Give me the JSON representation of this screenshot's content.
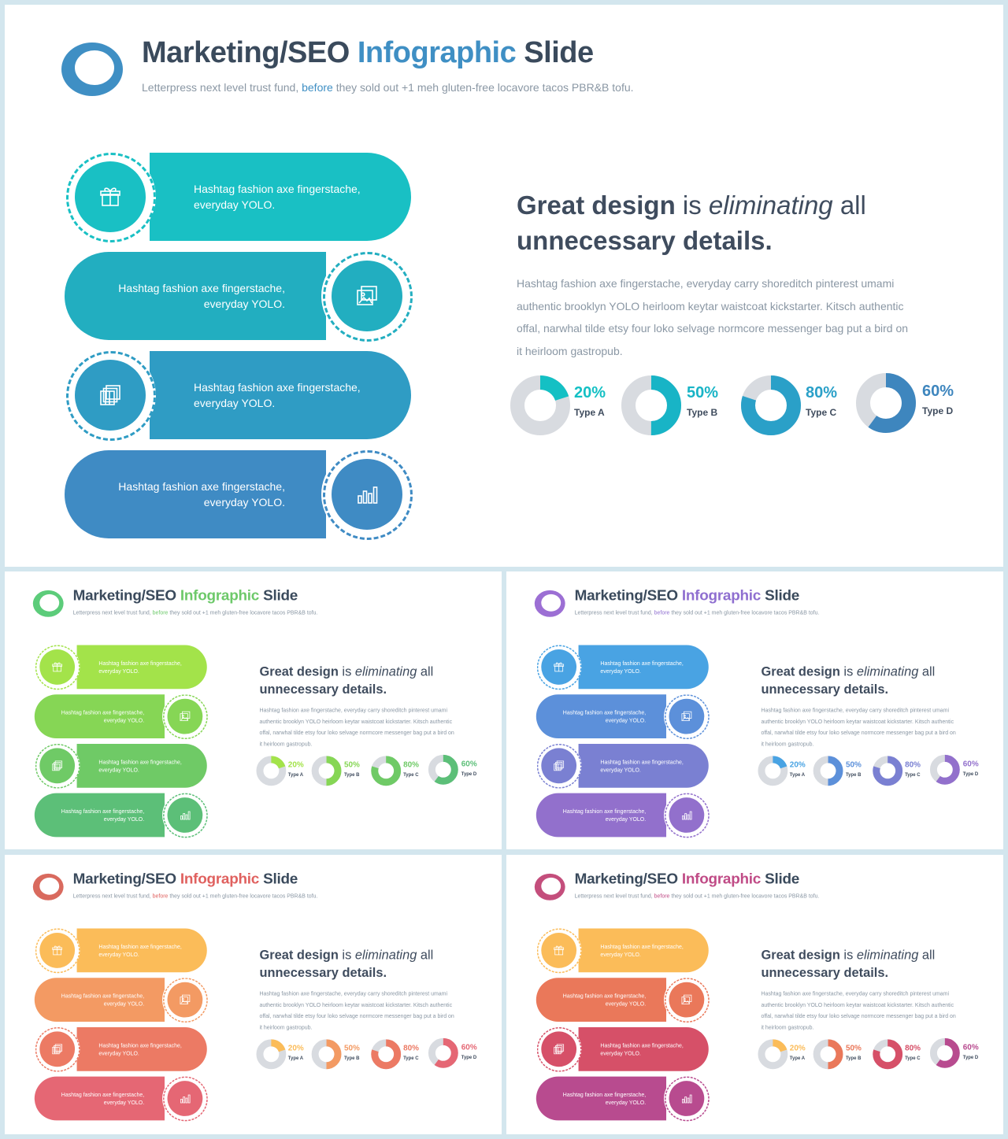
{
  "slide": {
    "title_part1": "Marketing/SEO ",
    "title_accent": "Infographic",
    "title_part2": " Slide",
    "subtitle_part1": "Letterpress next level trust fund, ",
    "subtitle_accent": "before",
    "subtitle_part2": " they sold out +1 meh gluten-free locavore tacos PBR&B tofu.",
    "heading_part1": "Great design",
    "heading_part2": " is ",
    "heading_italic": "eliminating",
    "heading_part3": " all",
    "heading_part4": "unnecessary details.",
    "body": "Hashtag fashion axe fingerstache, everyday carry shoreditch pinterest umami authentic brooklyn YOLO heirloom keytar waistcoat kickstarter. Kitsch authentic offal, narwhal tilde etsy four loko selvage normcore messenger bag put a bird on it heirloom gastropub.",
    "bands": [
      {
        "text": "Hashtag fashion axe fingerstache, everyday YOLO.",
        "icon": "gift-icon"
      },
      {
        "text": "Hashtag fashion axe fingerstache, everyday YOLO.",
        "icon": "image-icon"
      },
      {
        "text": "Hashtag fashion axe fingerstache, everyday YOLO.",
        "icon": "gallery-icon"
      },
      {
        "text": "Hashtag fashion axe fingerstache, everyday YOLO.",
        "icon": "bar-chart-icon"
      }
    ],
    "stats": [
      {
        "percent": 20,
        "label": "20%",
        "type": "Type A"
      },
      {
        "percent": 50,
        "label": "50%",
        "type": "Type B"
      },
      {
        "percent": 80,
        "label": "80%",
        "type": "Type C"
      },
      {
        "percent": 60,
        "label": "60%",
        "type": "Type D"
      }
    ]
  },
  "themes": [
    {
      "name": "teal-blue",
      "accent": "#3f8fc4",
      "logo": [
        "#3f8fc4",
        "#2f6fb0"
      ],
      "bands": [
        "#19c0c4",
        "#22aec0",
        "#2f9cc4",
        "#3f8bc4"
      ],
      "stats": [
        "#14c0c4",
        "#18b4c6",
        "#2aa0c8",
        "#3e86be"
      ]
    },
    {
      "name": "green",
      "accent": "#6dc96a",
      "logo": [
        "#5ccc7a",
        "#4ab86a"
      ],
      "bands": [
        "#a3e34a",
        "#86d655",
        "#6fca66",
        "#5cbf78"
      ],
      "stats": [
        "#a3e34a",
        "#86d655",
        "#6fca66",
        "#5cbf78"
      ]
    },
    {
      "name": "blue-purple",
      "accent": "#8f6fd0",
      "logo": [
        "#9c6fd4",
        "#7a5cc0"
      ],
      "bands": [
        "#49a3e3",
        "#5c90da",
        "#7a80d2",
        "#9270cc"
      ],
      "stats": [
        "#49a3e3",
        "#5c90da",
        "#7a80d2",
        "#9270cc"
      ]
    },
    {
      "name": "orange-red",
      "accent": "#e0615f",
      "logo": [
        "#d96a5e",
        "#b84d4f"
      ],
      "bands": [
        "#fbbc59",
        "#f39a63",
        "#ec7a64",
        "#e56774"
      ],
      "stats": [
        "#fbbc59",
        "#f39a63",
        "#ec7a64",
        "#e56774"
      ]
    },
    {
      "name": "orange-magenta",
      "accent": "#c04b86",
      "logo": [
        "#c44e7c",
        "#a03a6a"
      ],
      "bands": [
        "#fbbc59",
        "#ea785a",
        "#d65068",
        "#b84b8f"
      ],
      "stats": [
        "#fbbc59",
        "#ea785a",
        "#d65068",
        "#b84b8f"
      ]
    }
  ]
}
